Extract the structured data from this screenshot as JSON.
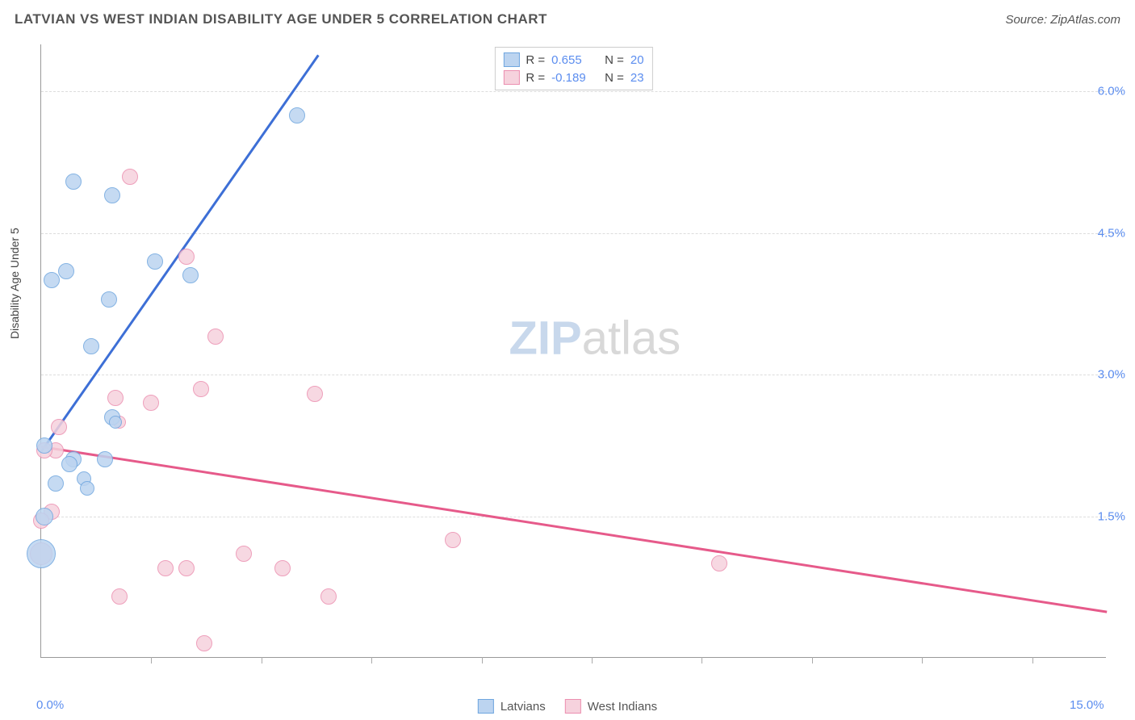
{
  "header": {
    "title": "LATVIAN VS WEST INDIAN DISABILITY AGE UNDER 5 CORRELATION CHART",
    "source": "Source: ZipAtlas.com"
  },
  "ylabel": "Disability Age Under 5",
  "chart": {
    "type": "scatter",
    "xlim": [
      0,
      15
    ],
    "ylim": [
      0,
      6.5
    ],
    "xticks": [
      0.0,
      15.0
    ],
    "xtick_minor": [
      1.55,
      3.1,
      4.65,
      6.2,
      7.75,
      9.3,
      10.85,
      12.4,
      13.95
    ],
    "yticks": [
      1.5,
      3.0,
      4.5,
      6.0
    ],
    "xtick_labels": [
      "0.0%",
      "15.0%"
    ],
    "ytick_labels": [
      "1.5%",
      "3.0%",
      "4.5%",
      "6.0%"
    ],
    "background_color": "#ffffff",
    "grid_color": "#dddddd",
    "axis_color": "#999999",
    "tick_label_color": "#5b8def",
    "series": [
      {
        "name": "Latvians",
        "fill": "#bcd4f0",
        "stroke": "#6fa6df",
        "R": "0.655",
        "N": "20",
        "trend": {
          "x1": 0.0,
          "y1": 2.2,
          "x2": 3.9,
          "y2": 6.4,
          "color": "#3d6fd6"
        },
        "points": [
          {
            "x": 3.6,
            "y": 5.75,
            "r": 10
          },
          {
            "x": 0.45,
            "y": 5.05,
            "r": 10
          },
          {
            "x": 1.0,
            "y": 4.9,
            "r": 10
          },
          {
            "x": 1.6,
            "y": 4.2,
            "r": 10
          },
          {
            "x": 0.35,
            "y": 4.1,
            "r": 10
          },
          {
            "x": 0.15,
            "y": 4.0,
            "r": 10
          },
          {
            "x": 0.95,
            "y": 3.8,
            "r": 10
          },
          {
            "x": 2.1,
            "y": 4.05,
            "r": 10
          },
          {
            "x": 0.7,
            "y": 3.3,
            "r": 10
          },
          {
            "x": 1.0,
            "y": 2.55,
            "r": 10
          },
          {
            "x": 1.05,
            "y": 2.5,
            "r": 8
          },
          {
            "x": 0.05,
            "y": 2.25,
            "r": 10
          },
          {
            "x": 0.45,
            "y": 2.1,
            "r": 10
          },
          {
            "x": 0.4,
            "y": 2.05,
            "r": 10
          },
          {
            "x": 0.9,
            "y": 2.1,
            "r": 10
          },
          {
            "x": 0.2,
            "y": 1.85,
            "r": 10
          },
          {
            "x": 0.6,
            "y": 1.9,
            "r": 9
          },
          {
            "x": 0.65,
            "y": 1.8,
            "r": 9
          },
          {
            "x": 0.05,
            "y": 1.5,
            "r": 11
          },
          {
            "x": 0.0,
            "y": 1.1,
            "r": 18
          }
        ]
      },
      {
        "name": "West Indians",
        "fill": "#f6d2dd",
        "stroke": "#ec8fb0",
        "R": "-0.189",
        "N": "23",
        "trend": {
          "x1": 0.0,
          "y1": 2.25,
          "x2": 15.0,
          "y2": 0.5,
          "color": "#e65a8a"
        },
        "points": [
          {
            "x": 1.25,
            "y": 5.1,
            "r": 10
          },
          {
            "x": 2.05,
            "y": 4.25,
            "r": 10
          },
          {
            "x": 2.45,
            "y": 3.4,
            "r": 10
          },
          {
            "x": 3.85,
            "y": 2.8,
            "r": 10
          },
          {
            "x": 2.25,
            "y": 2.85,
            "r": 10
          },
          {
            "x": 1.55,
            "y": 2.7,
            "r": 10
          },
          {
            "x": 1.05,
            "y": 2.75,
            "r": 10
          },
          {
            "x": 1.1,
            "y": 2.5,
            "r": 8
          },
          {
            "x": 0.25,
            "y": 2.45,
            "r": 10
          },
          {
            "x": 0.2,
            "y": 2.2,
            "r": 10
          },
          {
            "x": 0.05,
            "y": 2.2,
            "r": 10
          },
          {
            "x": 0.15,
            "y": 1.55,
            "r": 10
          },
          {
            "x": 0.0,
            "y": 1.45,
            "r": 10
          },
          {
            "x": 0.0,
            "y": 1.1,
            "r": 14
          },
          {
            "x": 5.8,
            "y": 1.25,
            "r": 10
          },
          {
            "x": 9.55,
            "y": 1.0,
            "r": 10
          },
          {
            "x": 2.85,
            "y": 1.1,
            "r": 10
          },
          {
            "x": 2.05,
            "y": 0.95,
            "r": 10
          },
          {
            "x": 1.75,
            "y": 0.95,
            "r": 10
          },
          {
            "x": 3.4,
            "y": 0.95,
            "r": 10
          },
          {
            "x": 1.1,
            "y": 0.65,
            "r": 10
          },
          {
            "x": 4.05,
            "y": 0.65,
            "r": 10
          },
          {
            "x": 2.3,
            "y": 0.15,
            "r": 10
          }
        ]
      }
    ]
  },
  "watermark": {
    "zip": "ZIP",
    "atlas": "atlas"
  }
}
